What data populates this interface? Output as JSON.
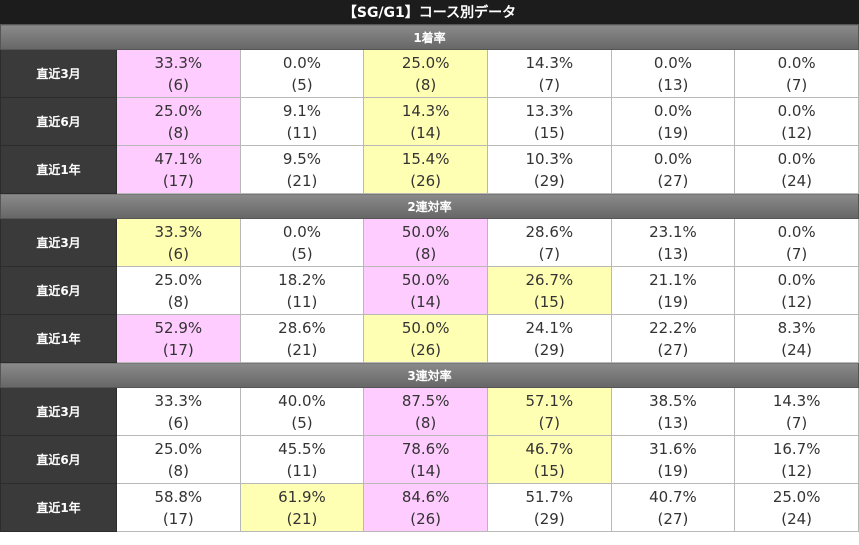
{
  "title": "【SG/G1】コース別データ",
  "colors": {
    "pink": "#ffccff",
    "yellow": "#ffffb3"
  },
  "sections": [
    {
      "name": "1着率",
      "rows": [
        {
          "label": "直近3月",
          "cells": [
            {
              "pct": "33.3%",
              "cnt": "(6)",
              "hl": "pink"
            },
            {
              "pct": "0.0%",
              "cnt": "(5)",
              "hl": ""
            },
            {
              "pct": "25.0%",
              "cnt": "(8)",
              "hl": "yellow"
            },
            {
              "pct": "14.3%",
              "cnt": "(7)",
              "hl": ""
            },
            {
              "pct": "0.0%",
              "cnt": "(13)",
              "hl": ""
            },
            {
              "pct": "0.0%",
              "cnt": "(7)",
              "hl": ""
            }
          ]
        },
        {
          "label": "直近6月",
          "cells": [
            {
              "pct": "25.0%",
              "cnt": "(8)",
              "hl": "pink"
            },
            {
              "pct": "9.1%",
              "cnt": "(11)",
              "hl": ""
            },
            {
              "pct": "14.3%",
              "cnt": "(14)",
              "hl": "yellow"
            },
            {
              "pct": "13.3%",
              "cnt": "(15)",
              "hl": ""
            },
            {
              "pct": "0.0%",
              "cnt": "(19)",
              "hl": ""
            },
            {
              "pct": "0.0%",
              "cnt": "(12)",
              "hl": ""
            }
          ]
        },
        {
          "label": "直近1年",
          "cells": [
            {
              "pct": "47.1%",
              "cnt": "(17)",
              "hl": "pink"
            },
            {
              "pct": "9.5%",
              "cnt": "(21)",
              "hl": ""
            },
            {
              "pct": "15.4%",
              "cnt": "(26)",
              "hl": "yellow"
            },
            {
              "pct": "10.3%",
              "cnt": "(29)",
              "hl": ""
            },
            {
              "pct": "0.0%",
              "cnt": "(27)",
              "hl": ""
            },
            {
              "pct": "0.0%",
              "cnt": "(24)",
              "hl": ""
            }
          ]
        }
      ]
    },
    {
      "name": "2連対率",
      "rows": [
        {
          "label": "直近3月",
          "cells": [
            {
              "pct": "33.3%",
              "cnt": "(6)",
              "hl": "yellow"
            },
            {
              "pct": "0.0%",
              "cnt": "(5)",
              "hl": ""
            },
            {
              "pct": "50.0%",
              "cnt": "(8)",
              "hl": "pink"
            },
            {
              "pct": "28.6%",
              "cnt": "(7)",
              "hl": ""
            },
            {
              "pct": "23.1%",
              "cnt": "(13)",
              "hl": ""
            },
            {
              "pct": "0.0%",
              "cnt": "(7)",
              "hl": ""
            }
          ]
        },
        {
          "label": "直近6月",
          "cells": [
            {
              "pct": "25.0%",
              "cnt": "(8)",
              "hl": ""
            },
            {
              "pct": "18.2%",
              "cnt": "(11)",
              "hl": ""
            },
            {
              "pct": "50.0%",
              "cnt": "(14)",
              "hl": "pink"
            },
            {
              "pct": "26.7%",
              "cnt": "(15)",
              "hl": "yellow"
            },
            {
              "pct": "21.1%",
              "cnt": "(19)",
              "hl": ""
            },
            {
              "pct": "0.0%",
              "cnt": "(12)",
              "hl": ""
            }
          ]
        },
        {
          "label": "直近1年",
          "cells": [
            {
              "pct": "52.9%",
              "cnt": "(17)",
              "hl": "pink"
            },
            {
              "pct": "28.6%",
              "cnt": "(21)",
              "hl": ""
            },
            {
              "pct": "50.0%",
              "cnt": "(26)",
              "hl": "yellow"
            },
            {
              "pct": "24.1%",
              "cnt": "(29)",
              "hl": ""
            },
            {
              "pct": "22.2%",
              "cnt": "(27)",
              "hl": ""
            },
            {
              "pct": "8.3%",
              "cnt": "(24)",
              "hl": ""
            }
          ]
        }
      ]
    },
    {
      "name": "3連対率",
      "rows": [
        {
          "label": "直近3月",
          "cells": [
            {
              "pct": "33.3%",
              "cnt": "(6)",
              "hl": ""
            },
            {
              "pct": "40.0%",
              "cnt": "(5)",
              "hl": ""
            },
            {
              "pct": "87.5%",
              "cnt": "(8)",
              "hl": "pink"
            },
            {
              "pct": "57.1%",
              "cnt": "(7)",
              "hl": "yellow"
            },
            {
              "pct": "38.5%",
              "cnt": "(13)",
              "hl": ""
            },
            {
              "pct": "14.3%",
              "cnt": "(7)",
              "hl": ""
            }
          ]
        },
        {
          "label": "直近6月",
          "cells": [
            {
              "pct": "25.0%",
              "cnt": "(8)",
              "hl": ""
            },
            {
              "pct": "45.5%",
              "cnt": "(11)",
              "hl": ""
            },
            {
              "pct": "78.6%",
              "cnt": "(14)",
              "hl": "pink"
            },
            {
              "pct": "46.7%",
              "cnt": "(15)",
              "hl": "yellow"
            },
            {
              "pct": "31.6%",
              "cnt": "(19)",
              "hl": ""
            },
            {
              "pct": "16.7%",
              "cnt": "(12)",
              "hl": ""
            }
          ]
        },
        {
          "label": "直近1年",
          "cells": [
            {
              "pct": "58.8%",
              "cnt": "(17)",
              "hl": ""
            },
            {
              "pct": "61.9%",
              "cnt": "(21)",
              "hl": "yellow"
            },
            {
              "pct": "84.6%",
              "cnt": "(26)",
              "hl": "pink"
            },
            {
              "pct": "51.7%",
              "cnt": "(29)",
              "hl": ""
            },
            {
              "pct": "40.7%",
              "cnt": "(27)",
              "hl": ""
            },
            {
              "pct": "25.0%",
              "cnt": "(24)",
              "hl": ""
            }
          ]
        }
      ]
    }
  ]
}
